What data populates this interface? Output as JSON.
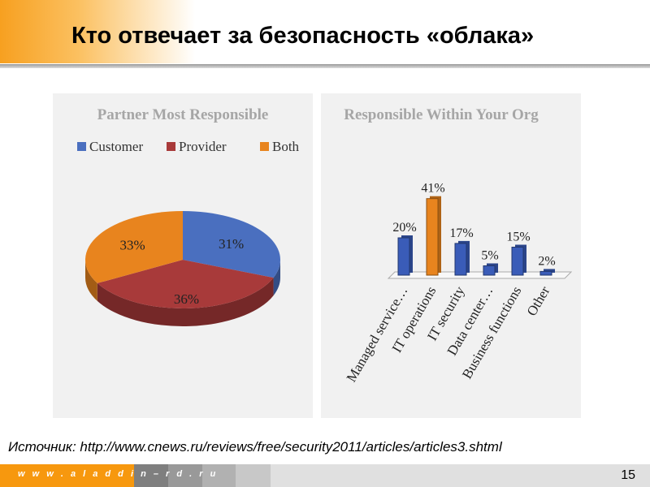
{
  "title": "Кто отвечает за безопасность «облака»",
  "source": "Источник: http://www.cnews.ru/reviews/free/security2011/articles/articles3.shtml",
  "footer": {
    "site": "w w w . a l a d d i n – r d . r u",
    "page": "15"
  },
  "chart_data": [
    {
      "type": "pie",
      "title": "Partner Most Responsible",
      "legend": [
        "Customer",
        "Provider",
        "Both"
      ],
      "categories": [
        "Customer",
        "Provider",
        "Both"
      ],
      "values": [
        31,
        36,
        33
      ],
      "labels": [
        "31%",
        "36%",
        "33%"
      ],
      "colors": [
        "#4a6fbf",
        "#a83a3a",
        "#e8841e"
      ]
    },
    {
      "type": "bar",
      "title": "Responsible Within Your Org",
      "categories": [
        "Managed service…",
        "IT operations",
        "IT security",
        "Data center…",
        "Business functions",
        "Other"
      ],
      "values": [
        20,
        41,
        17,
        5,
        15,
        2
      ],
      "labels": [
        "20%",
        "41%",
        "17%",
        "5%",
        "15%",
        "2%"
      ],
      "colors": [
        "#3a5cb8",
        "#e8841e",
        "#3a5cb8",
        "#3a5cb8",
        "#3a5cb8",
        "#3a5cb8"
      ],
      "ylim": [
        0,
        45
      ]
    }
  ]
}
